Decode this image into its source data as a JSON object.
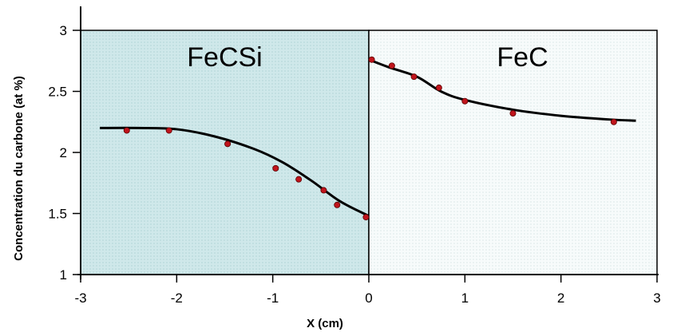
{
  "chart_data": {
    "type": "scatter",
    "xlabel": "X (cm)",
    "ylabel": "Concentration du carbone (at %)",
    "xlim": [
      -3,
      3
    ],
    "ylim": [
      1,
      3
    ],
    "x_ticks": [
      -3,
      -2,
      -1,
      0,
      1,
      2,
      3
    ],
    "y_ticks": [
      1,
      1.5,
      2,
      2.5,
      3
    ],
    "grid": false,
    "regions": [
      {
        "label": "FeCSi",
        "x_range": [
          -3,
          0
        ],
        "fill": "#cfe8ea"
      },
      {
        "label": "FeC",
        "x_range": [
          0,
          3
        ],
        "fill": "#f3f8f8"
      }
    ],
    "series": [
      {
        "type": "scatter",
        "color": "#c0141c",
        "points": [
          [
            -2.52,
            2.18
          ],
          [
            -2.08,
            2.18
          ],
          [
            -1.47,
            2.07
          ],
          [
            -0.97,
            1.87
          ],
          [
            -0.73,
            1.78
          ],
          [
            -0.47,
            1.69
          ],
          [
            -0.33,
            1.57
          ],
          [
            -0.03,
            1.47
          ],
          [
            0.03,
            2.76
          ],
          [
            0.24,
            2.71
          ],
          [
            0.47,
            2.62
          ],
          [
            0.73,
            2.53
          ],
          [
            1.0,
            2.42
          ],
          [
            1.5,
            2.32
          ],
          [
            2.55,
            2.25
          ]
        ]
      },
      {
        "type": "line",
        "color": "#000000",
        "segments": [
          [
            [
              -2.8,
              2.2
            ],
            [
              -2.4,
              2.2
            ],
            [
              -2.0,
              2.19
            ],
            [
              -1.6,
              2.13
            ],
            [
              -1.2,
              2.03
            ],
            [
              -0.9,
              1.92
            ],
            [
              -0.6,
              1.77
            ],
            [
              -0.3,
              1.6
            ],
            [
              0.0,
              1.48
            ]
          ],
          [
            [
              0.0,
              2.76
            ],
            [
              0.2,
              2.7
            ],
            [
              0.5,
              2.62
            ],
            [
              0.75,
              2.5
            ],
            [
              1.0,
              2.43
            ],
            [
              1.5,
              2.35
            ],
            [
              2.0,
              2.3
            ],
            [
              2.5,
              2.27
            ],
            [
              2.78,
              2.26
            ]
          ]
        ]
      }
    ]
  }
}
